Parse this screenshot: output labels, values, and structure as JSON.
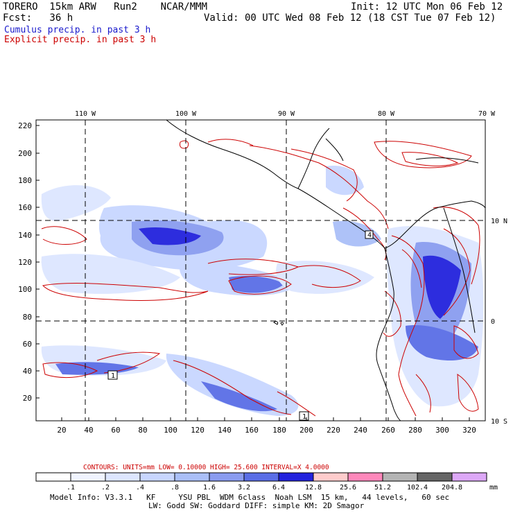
{
  "header": {
    "model": "TORERO  15km ARW   Run2    NCAR/MMM",
    "init": "Init: 12 UTC Mon 06 Feb 12",
    "fcst": "Fcst:   36 h",
    "valid": "Valid: 00 UTC Wed 08 Feb 12 (18 CST Tue 07 Feb 12)",
    "field1": "Cumulus precip. in past 3 h",
    "field2": "Explicit precip. in past 3 h",
    "field1_color": "#1a1acc",
    "field2_color": "#cc0000"
  },
  "map": {
    "top_labels": [
      "110 W",
      "100 W",
      "90 W",
      "80 W",
      "70 W"
    ],
    "left_labels": [
      "220",
      "200",
      "180",
      "160",
      "140",
      "120",
      "100",
      "80",
      "60",
      "40",
      "20"
    ],
    "bottom_labels": [
      "20",
      "40",
      "60",
      "80",
      "100",
      "120",
      "140",
      "160",
      "180",
      "200",
      "220",
      "240",
      "260",
      "280",
      "300",
      "320"
    ],
    "right_labels": [
      "10 N",
      "0",
      "10 S"
    ],
    "box_markers": [
      "4",
      "1",
      "1"
    ]
  },
  "contours": {
    "text": "CONTOURS:  UNITS=mm  LOW= 0.10000      HIGH=  25.600      INTERVAL=X  4.0000",
    "color": "#cc0000"
  },
  "colorbar": {
    "labels": [
      ".1",
      ".2",
      ".4",
      ".8",
      "1.6",
      "3.2",
      "6.4",
      "12.8",
      "25.6",
      "51.2",
      "102.4",
      "204.8"
    ],
    "unit": "mm",
    "colors": [
      "#ffffff",
      "#f0f4ff",
      "#dde6ff",
      "#c8d6ff",
      "#aabff8",
      "#8a9cf0",
      "#5a6ee6",
      "#2222dd",
      "#ffcccc",
      "#ff88bb",
      "#b4b4b4",
      "#666666",
      "#dda8f8"
    ]
  },
  "footer": {
    "line1": "Model Info: V3.3.1   KF     YSU PBL  WDM 6class  Noah LSM  15 km,   44 levels,   60 sec",
    "line2": "LW: Godd SW: Goddard DIFF: simple KM: 2D Smagor"
  }
}
